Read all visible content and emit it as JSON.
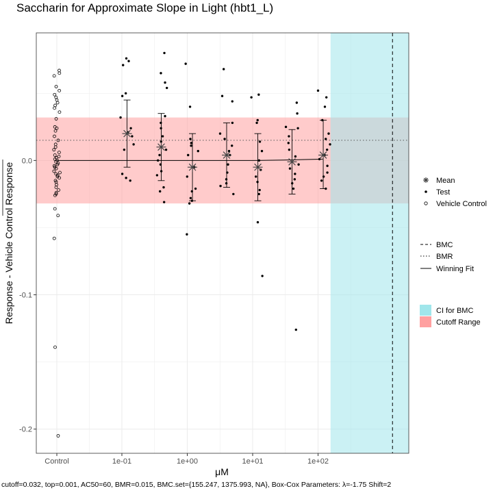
{
  "chart_data": {
    "type": "scatter",
    "title": "Saccharin for Approximate Slope in Light (hbt1_L)",
    "xlabel": "μM",
    "ylabel": "Response - Vehicle Control Response",
    "caption": "cutoff=0.032, top=0.001, AC50=60, BMR=0.015, BMC.set={155.247, 1375.993, NA}, Box-Cox Parameters: λ=-1.75 Shift=2",
    "x_scale": "log10",
    "x_ticks": [
      "Control",
      "1e-01",
      "1e+00",
      "1e+01",
      "1e+02"
    ],
    "y_ticks": [
      "0.0",
      "-0.1",
      "-0.2"
    ],
    "ylim": [
      -0.218,
      0.095
    ],
    "grid": true,
    "cutoff": 0.032,
    "bmr": 0.015,
    "bmc_ci": [
      155.247,
      1375.993
    ],
    "bmc": 1375.993,
    "colors": {
      "cutoff_fill": "#FFA0A0",
      "ci_fill": "#A0E6EB",
      "points": "#000000"
    },
    "legend": [
      {
        "symbol": "star",
        "label": "Mean"
      },
      {
        "symbol": "dot",
        "label": "Test"
      },
      {
        "symbol": "circle",
        "label": "Vehicle Control"
      },
      {
        "symbol": "dash",
        "label": "BMC"
      },
      {
        "symbol": "dot-line",
        "label": "BMR"
      },
      {
        "symbol": "solid",
        "label": "Winning Fit"
      },
      {
        "symbol": "ci-fill",
        "label": "CI for BMC"
      },
      {
        "symbol": "cutoff-fill",
        "label": "Cutoff Range"
      }
    ],
    "vehicle_control": [
      0.067,
      0.065,
      0.063,
      0.055,
      0.052,
      0.049,
      0.047,
      0.045,
      0.043,
      0.041,
      0.039,
      0.036,
      0.031,
      0.025,
      0.024,
      0.022,
      0.018,
      0.015,
      0.012,
      0.01,
      0.008,
      0.006,
      0.004,
      0.003,
      0.002,
      0.001,
      0.0,
      -0.001,
      -0.002,
      -0.003,
      -0.004,
      -0.005,
      -0.006,
      -0.008,
      -0.009,
      -0.01,
      -0.011,
      -0.012,
      -0.013,
      -0.015,
      -0.016,
      -0.018,
      -0.02,
      -0.022,
      -0.024,
      -0.025,
      -0.026,
      -0.036,
      -0.041,
      -0.058,
      -0.139,
      -0.205
    ],
    "test_groups": [
      {
        "conc": 0.12,
        "mean": 0.02,
        "err_low": -0.005,
        "err_high": 0.045,
        "values": [
          0.076,
          0.074,
          0.071,
          0.05,
          0.048,
          0.032,
          0.024,
          0.021,
          0.018,
          0.012,
          0.008,
          -0.01,
          -0.013,
          -0.015
        ]
      },
      {
        "conc": 0.4,
        "mean": 0.01,
        "err_low": -0.015,
        "err_high": 0.035,
        "values": [
          0.08,
          0.065,
          0.058,
          0.054,
          0.033,
          0.028,
          0.024,
          0.018,
          0.014,
          0.008,
          0.004,
          0.0,
          -0.003,
          -0.008,
          -0.011,
          -0.02,
          -0.023,
          -0.031
        ]
      },
      {
        "conc": 1.2,
        "mean": -0.005,
        "err_low": -0.03,
        "err_high": 0.02,
        "values": [
          0.072,
          0.04,
          0.016,
          0.013,
          0.011,
          0.007,
          0.004,
          -0.005,
          -0.012,
          -0.021,
          -0.023,
          -0.028,
          -0.03,
          -0.032,
          -0.055
        ]
      },
      {
        "conc": 4.0,
        "mean": 0.004,
        "err_low": -0.02,
        "err_high": 0.028,
        "values": [
          0.068,
          0.048,
          0.044,
          0.028,
          0.02,
          0.016,
          0.011,
          0.007,
          0.004,
          -0.003,
          -0.009,
          -0.014,
          -0.017,
          -0.019,
          -0.025
        ]
      },
      {
        "conc": 12.0,
        "mean": -0.005,
        "err_low": -0.03,
        "err_high": 0.02,
        "values": [
          0.049,
          0.047,
          0.03,
          0.028,
          0.014,
          0.007,
          0.0,
          -0.007,
          -0.012,
          -0.016,
          -0.022,
          -0.025,
          -0.046,
          -0.086
        ]
      },
      {
        "conc": 40.0,
        "mean": -0.001,
        "err_low": -0.025,
        "err_high": 0.023,
        "values": [
          0.043,
          0.035,
          0.025,
          0.024,
          0.018,
          0.013,
          0.008,
          0.003,
          -0.003,
          -0.006,
          -0.01,
          -0.014,
          -0.017,
          -0.021,
          -0.126
        ]
      },
      {
        "conc": 120.0,
        "mean": 0.004,
        "err_low": -0.021,
        "err_high": 0.03,
        "values": [
          0.052,
          0.047,
          0.04,
          0.03,
          0.02,
          0.016,
          0.012,
          0.008,
          0.004,
          0.001,
          -0.004,
          -0.009,
          -0.012,
          -0.015,
          -0.021
        ]
      }
    ],
    "winning_fit": [
      {
        "x": 0.1,
        "y": 0.0
      },
      {
        "x": 1.0,
        "y": 0.0
      },
      {
        "x": 10.0,
        "y": 0.0
      },
      {
        "x": 30.0,
        "y": 0.0003
      },
      {
        "x": 60.0,
        "y": 0.0007
      },
      {
        "x": 120.0,
        "y": 0.001
      }
    ]
  }
}
